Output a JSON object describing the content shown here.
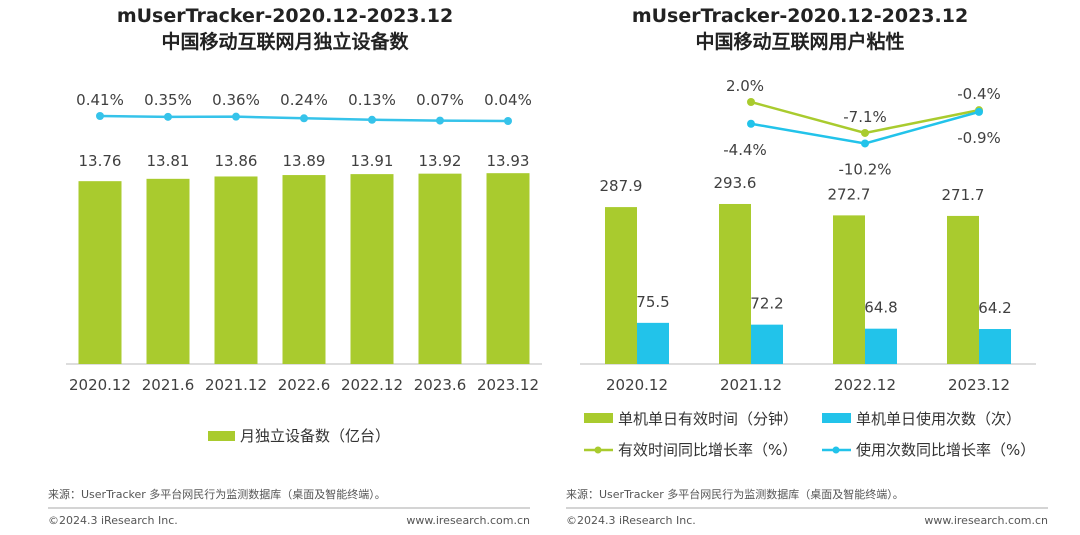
{
  "colors": {
    "green": "#A9CB2E",
    "blue": "#22C3EA",
    "line_left": "#36C3EA",
    "grid": "#BBBBBB"
  },
  "chart_data": [
    {
      "type": "bar",
      "title": "mUserTracker-2020.12-2023.12",
      "subtitle": "中国移动互联网月独立设备数",
      "categories": [
        "2020.12",
        "2021.6",
        "2021.12",
        "2022.6",
        "2022.12",
        "2023.6",
        "2023.12"
      ],
      "series": [
        {
          "name": "月独立设备数（亿台）",
          "type": "bar",
          "values": [
            13.76,
            13.81,
            13.86,
            13.89,
            13.91,
            13.92,
            13.93
          ],
          "labels": [
            "13.76",
            "13.81",
            "13.86",
            "13.89",
            "13.91",
            "13.92",
            "13.93"
          ]
        },
        {
          "type": "line",
          "values": [
            0.41,
            0.35,
            0.36,
            0.24,
            0.13,
            0.07,
            0.04
          ],
          "labels": [
            "0.41%",
            "0.35%",
            "0.36%",
            "0.24%",
            "0.13%",
            "0.07%",
            "0.04%"
          ]
        }
      ],
      "legend": [
        "月独立设备数（亿台）"
      ],
      "legend_position": "bottom"
    },
    {
      "type": "bar",
      "title": "mUserTracker-2020.12-2023.12",
      "subtitle": "中国移动互联网用户粘性",
      "categories": [
        "2020.12",
        "2021.12",
        "2022.12",
        "2023.12"
      ],
      "series": [
        {
          "name": "单机单日有效时间（分钟）",
          "type": "bar",
          "values": [
            287.9,
            293.6,
            272.7,
            271.7
          ],
          "labels": [
            "287.9",
            "293.6",
            "272.7",
            "271.7"
          ]
        },
        {
          "name": "单机单日使用次数（次）",
          "type": "bar",
          "values": [
            75.5,
            72.2,
            64.8,
            64.2
          ],
          "labels": [
            "75.5",
            "72.2",
            "64.8",
            "64.2"
          ]
        },
        {
          "name": "有效时间同比增长率（%）",
          "type": "line",
          "values": [
            null,
            2.0,
            -7.1,
            -0.4
          ],
          "labels": [
            "",
            "2.0%",
            "-7.1%",
            "-0.4%"
          ]
        },
        {
          "name": "使用次数同比增长率（%）",
          "type": "line",
          "values": [
            null,
            -4.4,
            -10.2,
            -0.9
          ],
          "labels": [
            "",
            "-4.4%",
            "-10.2%",
            "-0.9%"
          ]
        }
      ],
      "legend_position": "bottom"
    }
  ],
  "footer": {
    "source": "来源：UserTracker 多平台网民行为监测数据库（桌面及智能终端）。",
    "copyright": "©2024.3 iResearch Inc.",
    "website": "www.iresearch.com.cn"
  }
}
